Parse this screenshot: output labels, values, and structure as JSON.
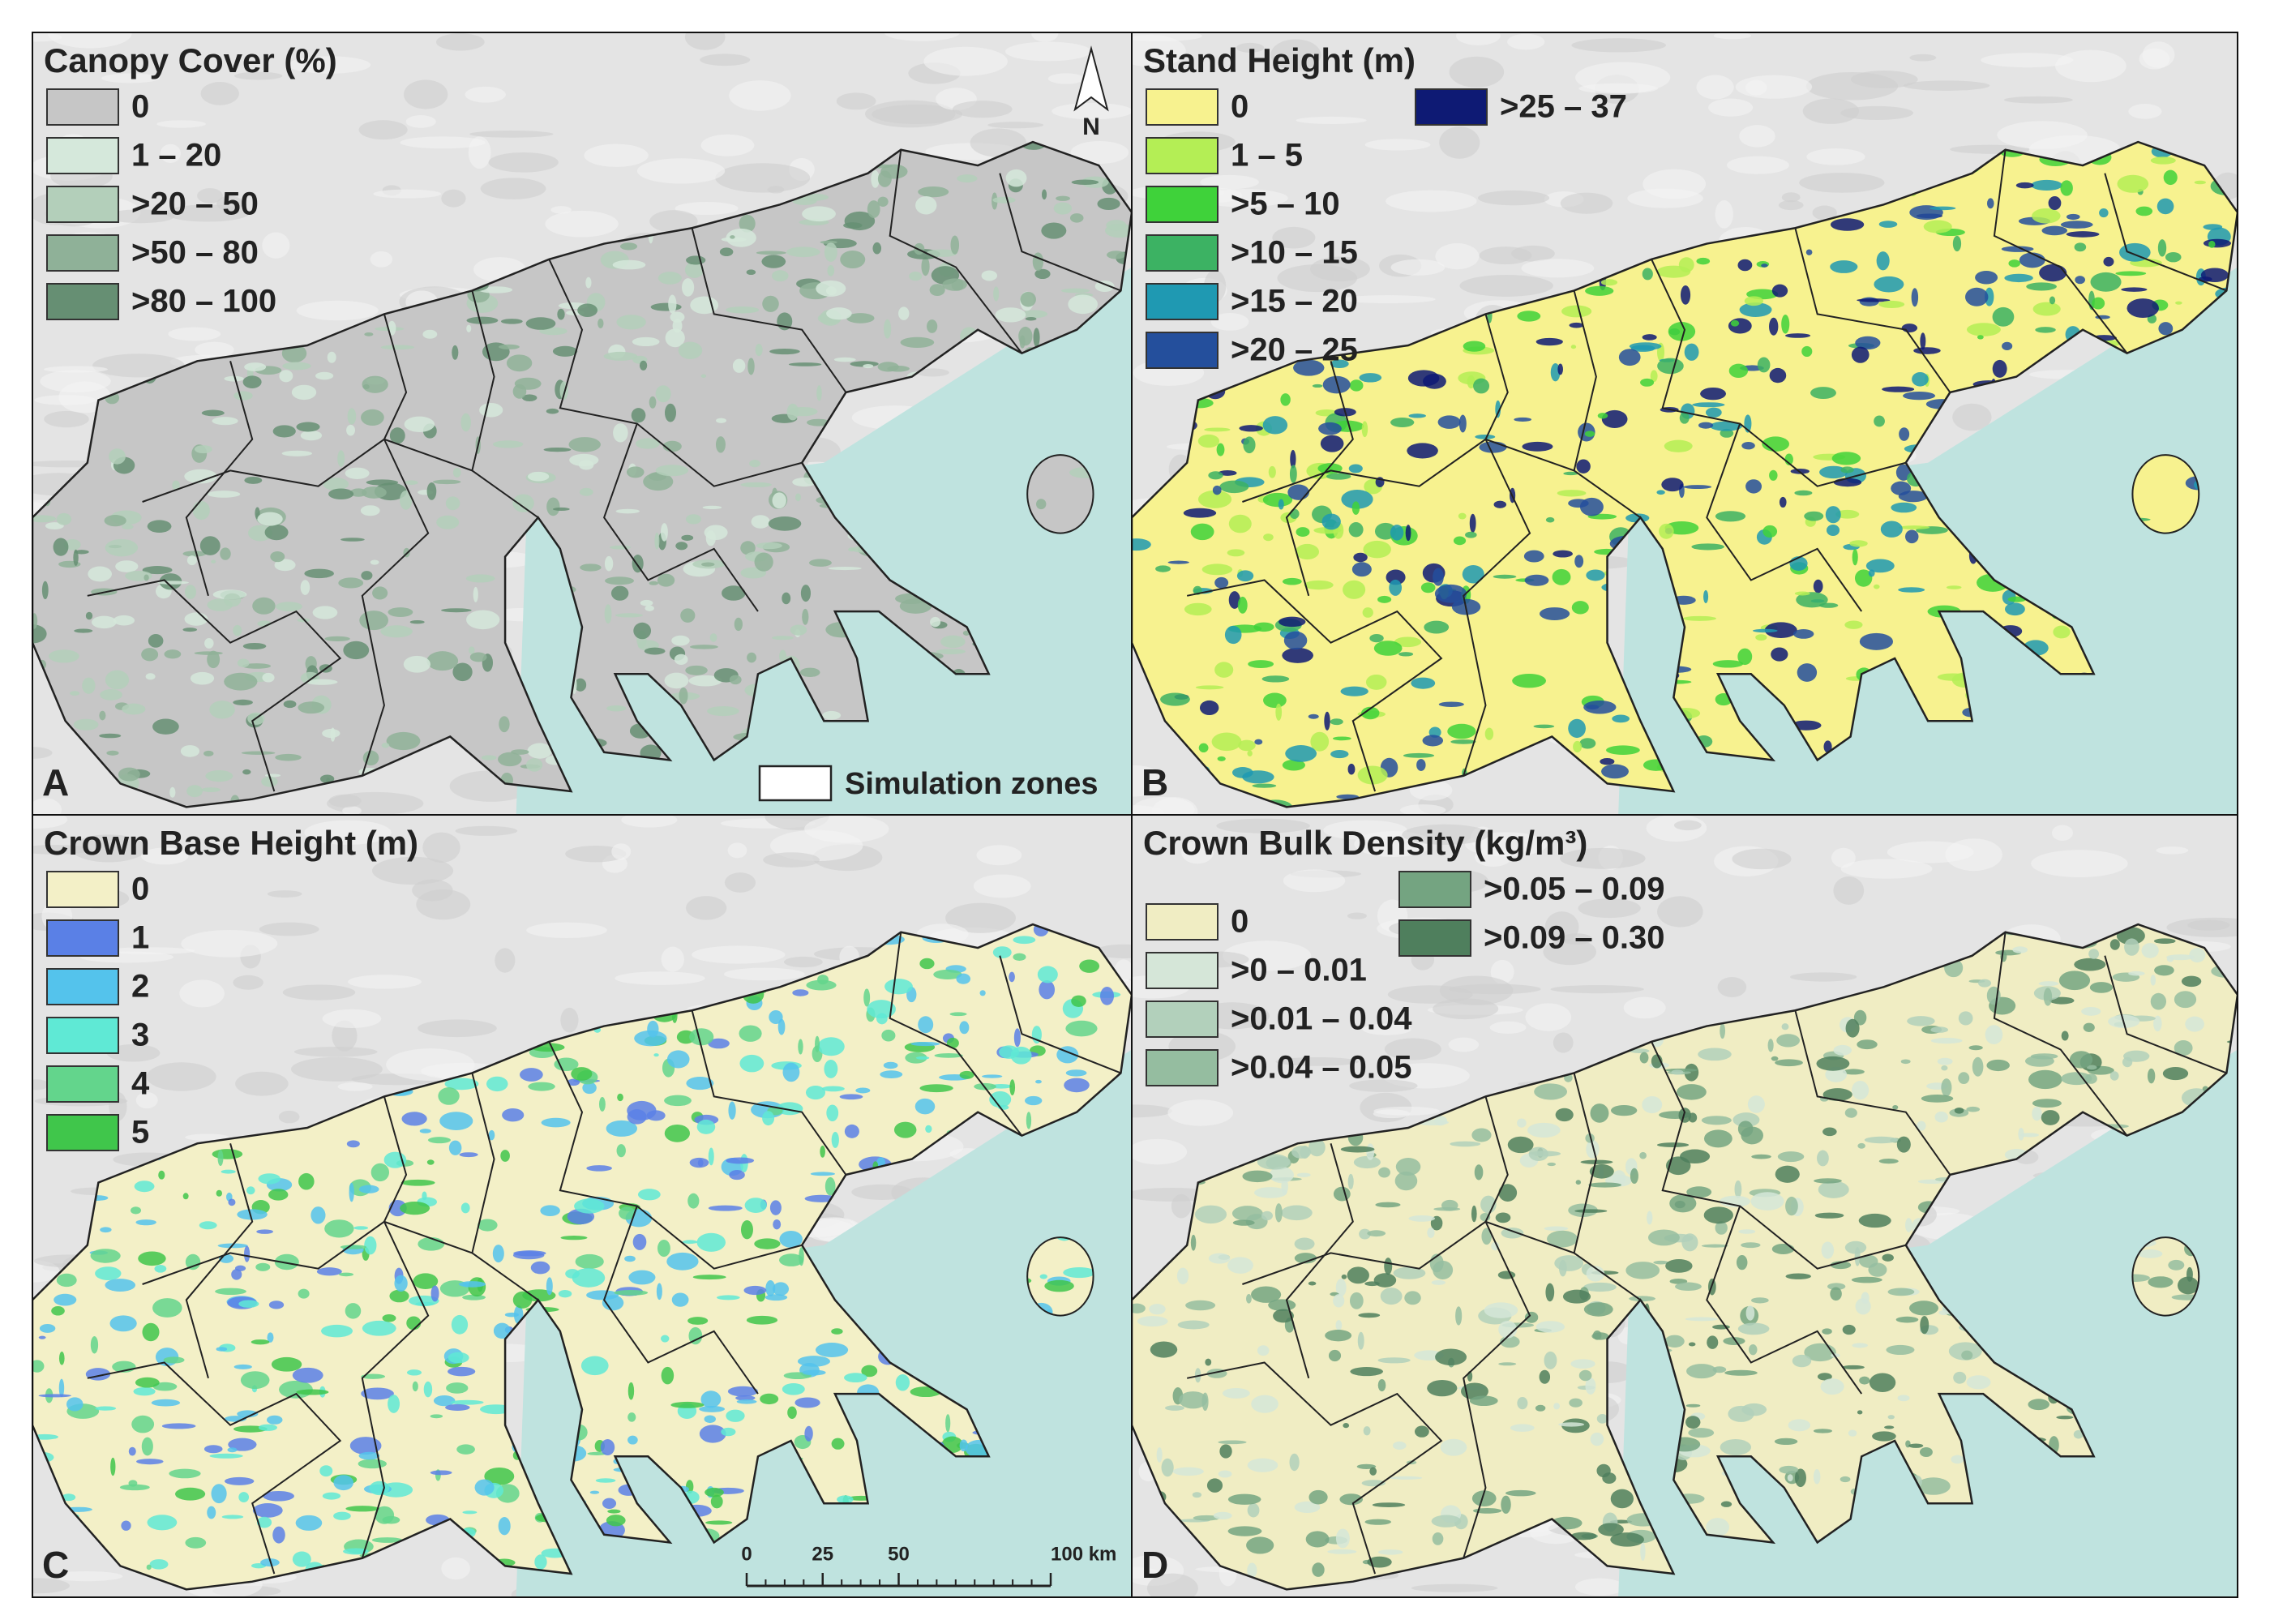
{
  "panels": [
    {
      "title": "Canopy Cover (%)",
      "letter": "A",
      "legend": [
        [
          {
            "label": "0",
            "color": "#c6c6c6"
          },
          {
            "label": "1 – 20",
            "color": "#d5e8db"
          },
          {
            "label": ">20 – 50",
            "color": "#b3cfba"
          },
          {
            "label": ">50 – 80",
            "color": "#8fb198"
          },
          {
            "label": ">80 – 100",
            "color": "#668f73"
          }
        ]
      ]
    },
    {
      "title": "Stand Height (m)",
      "letter": "B",
      "legend": [
        [
          {
            "label": "0",
            "color": "#f7f28f"
          },
          {
            "label": "1 – 5",
            "color": "#b4ee55"
          },
          {
            "label": ">5 – 10",
            "color": "#3fd23a"
          },
          {
            "label": ">10 – 15",
            "color": "#3cb263"
          },
          {
            "label": ">15 – 20",
            "color": "#1f99b2"
          },
          {
            "label": ">20 – 25",
            "color": "#244f9c"
          }
        ],
        [
          {
            "label": ">25 – 37",
            "color": "#0e1a74"
          }
        ]
      ]
    },
    {
      "title": "Crown Base Height (m)",
      "letter": "C",
      "legend": [
        [
          {
            "label": "0",
            "color": "#f3f0c7"
          },
          {
            "label": "1",
            "color": "#5a80e6"
          },
          {
            "label": "2",
            "color": "#54c3ec"
          },
          {
            "label": "3",
            "color": "#5fe9d5"
          },
          {
            "label": "4",
            "color": "#63d58c"
          },
          {
            "label": "5",
            "color": "#40c64b"
          }
        ]
      ]
    },
    {
      "title": "Crown Bulk Density (kg/m³)",
      "letter": "D",
      "legend": [
        [
          {
            "label": "0",
            "color": "#f0edc3"
          },
          {
            "label": ">0 – 0.01",
            "color": "#d5e6d8"
          },
          {
            "label": ">0.01 – 0.04",
            "color": "#b2d0bb"
          },
          {
            "label": ">0.04 – 0.05",
            "color": "#95bda0"
          }
        ],
        [
          {
            "label": ">0.05 – 0.09",
            "color": "#74a481"
          },
          {
            "label": ">0.09 – 0.30",
            "color": "#4f7f5d"
          }
        ]
      ]
    }
  ],
  "north_arrow": "N",
  "zones_legend": "Simulation zones",
  "scale_bar": [
    0,
    25,
    50,
    {
      "value": 100,
      "label": "100 km"
    }
  ]
}
